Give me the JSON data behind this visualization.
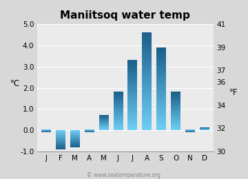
{
  "title": "Maniitsoq water temp",
  "months": [
    "J",
    "F",
    "M",
    "A",
    "M",
    "J",
    "J",
    "A",
    "S",
    "O",
    "N",
    "D"
  ],
  "values_c": [
    -0.1,
    -0.9,
    -0.8,
    -0.1,
    0.7,
    1.8,
    3.3,
    4.6,
    3.9,
    1.8,
    -0.1,
    0.1
  ],
  "ylim_c": [
    -1.0,
    5.0
  ],
  "ylim_f": [
    30,
    41
  ],
  "yticks_c": [
    -1.0,
    0.0,
    1.0,
    2.0,
    3.0,
    4.0,
    5.0
  ],
  "ytick_labels_c": [
    "-1.0",
    "0.0",
    "1.0",
    "2.0",
    "3.0",
    "4.0",
    "5.0"
  ],
  "yticks_f": [
    30,
    32,
    34,
    36,
    37,
    39,
    41
  ],
  "ytick_labels_f": [
    "30",
    "32",
    "34",
    "36",
    "37",
    "39",
    "41"
  ],
  "ylabel_left": "°C",
  "ylabel_right": "°F",
  "fig_bg_color": "#d8d8d8",
  "plot_bg_color": "#ebebeb",
  "bar_color_top": "#6ecff6",
  "bar_color_bottom": "#1a5f8a",
  "watermark": "© www.seatemperature.org",
  "title_fontsize": 11,
  "tick_fontsize": 7.5,
  "label_fontsize": 8.5,
  "watermark_fontsize": 5.5
}
